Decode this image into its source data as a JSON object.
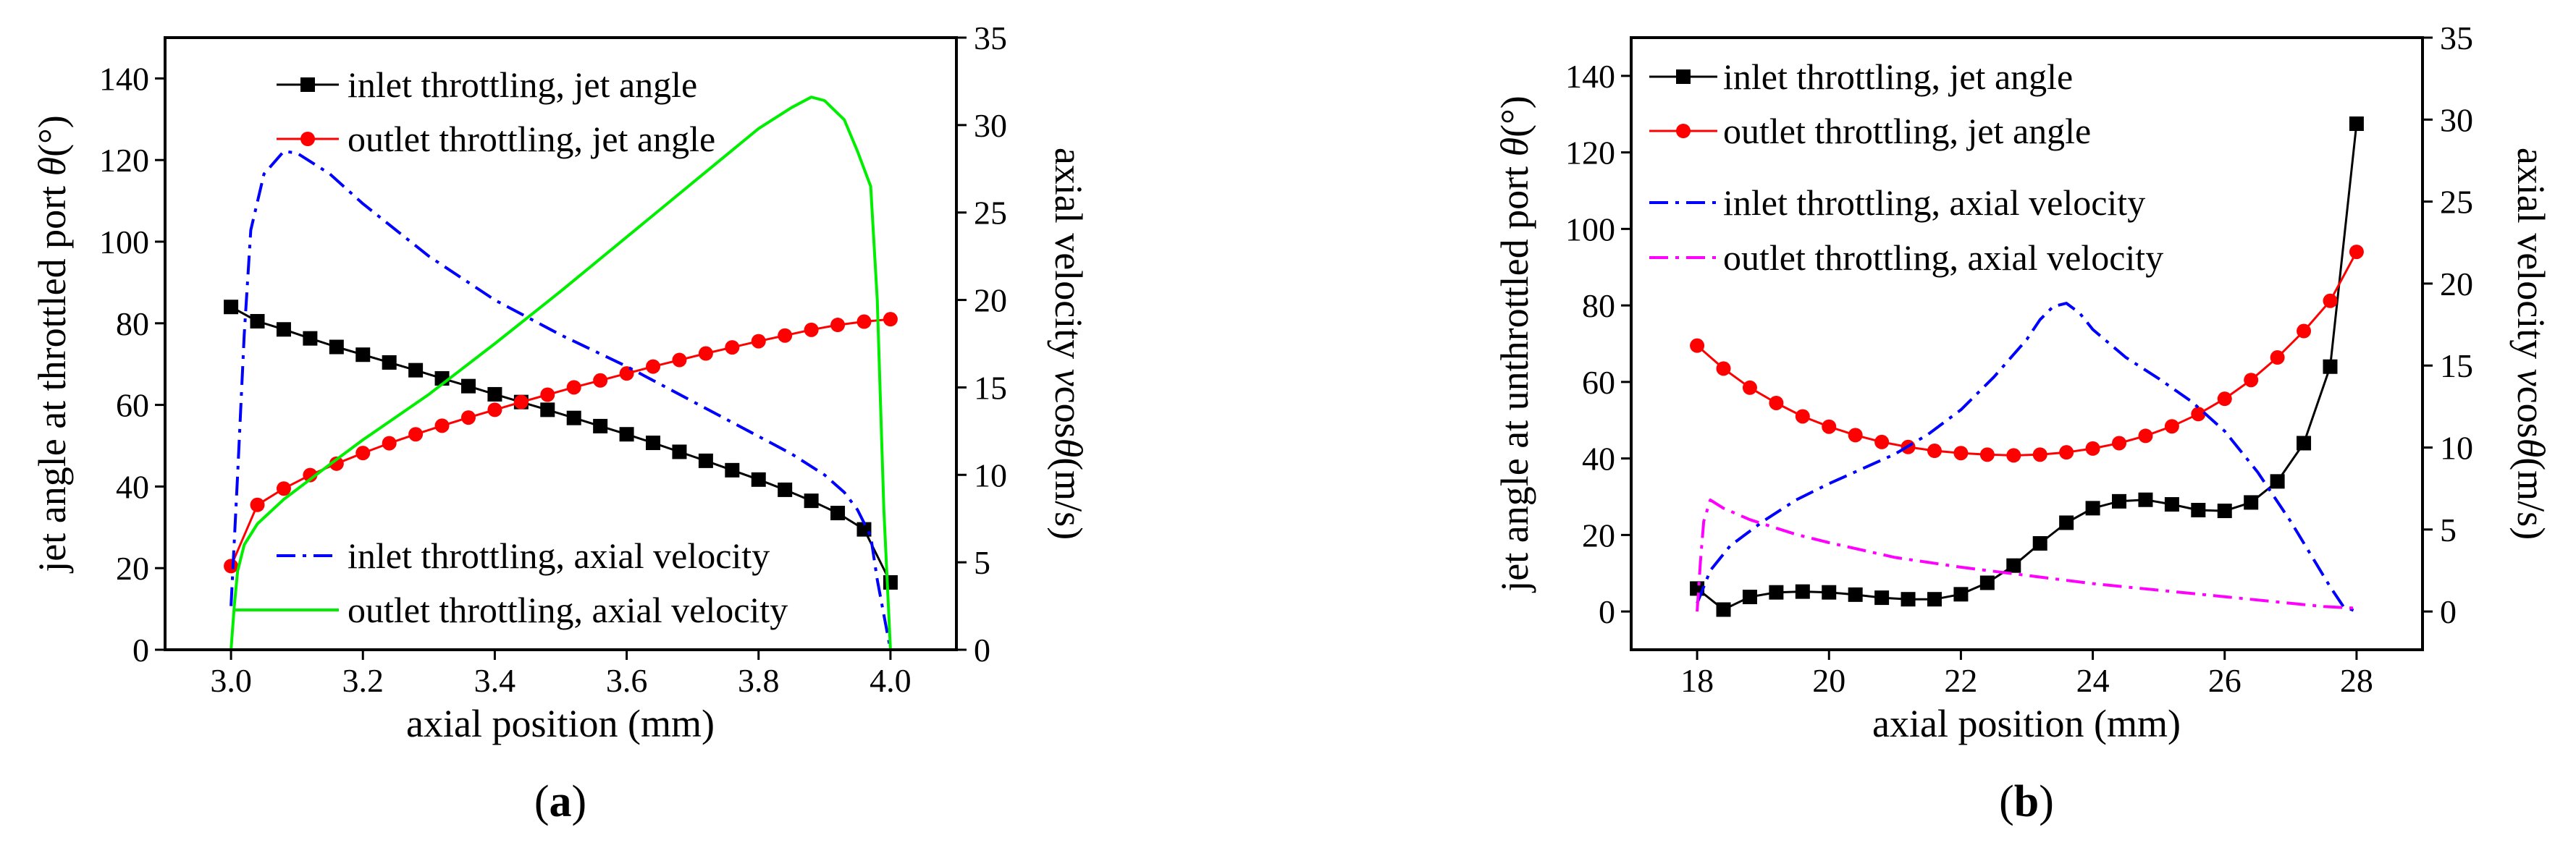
{
  "chart_data": [
    {
      "type": "line",
      "panel": "a",
      "caption_open": "(",
      "caption_letter": "a",
      "caption_close": ")",
      "xlabel": "axial position (mm)",
      "ylabel_left_prefix": "jet angle at throttled port ",
      "ylabel_left_sym": "θ",
      "ylabel_left_unit": "(°)",
      "ylabel_right_prefix": "axial velocity ",
      "ylabel_right_sym": "v",
      "ylabel_right_mid": "cos",
      "ylabel_right_sym2": "θ",
      "ylabel_right_unit": "(m/s)",
      "xlim": [
        2.9,
        4.1
      ],
      "ylim_left": [
        0,
        150
      ],
      "ylim_right": [
        0,
        35
      ],
      "xticks": [
        "3.0",
        "3.2",
        "3.4",
        "3.6",
        "3.8",
        "4.0"
      ],
      "yticks_left": [
        "0",
        "20",
        "40",
        "60",
        "80",
        "100",
        "120",
        "140"
      ],
      "yticks_right": [
        "0",
        "5",
        "10",
        "15",
        "20",
        "25",
        "30",
        "35"
      ],
      "legend": [
        "inlet throttling, jet angle",
        "outlet throttling, jet angle",
        "inlet throttling, axial velocity",
        "outlet throttling, axial velocity"
      ],
      "series": [
        {
          "name": "inlet throttling, jet angle",
          "axis": "left",
          "color": "#000000",
          "marker": "square",
          "dash": "solid",
          "x": [
            3.0,
            3.04,
            3.08,
            3.12,
            3.16,
            3.2,
            3.24,
            3.28,
            3.32,
            3.36,
            3.4,
            3.44,
            3.48,
            3.52,
            3.56,
            3.6,
            3.64,
            3.68,
            3.72,
            3.76,
            3.8,
            3.84,
            3.88,
            3.92,
            3.96,
            4.0
          ],
          "y": [
            84,
            80.5,
            78.5,
            76.3,
            74.2,
            72.3,
            70.4,
            68.5,
            66.5,
            64.6,
            62.6,
            60.7,
            58.8,
            56.8,
            54.8,
            52.8,
            50.7,
            48.5,
            46.3,
            44.0,
            41.7,
            39.2,
            36.5,
            33.5,
            29.5,
            16.5
          ]
        },
        {
          "name": "outlet throttling, jet angle",
          "axis": "left",
          "color": "#ff0000",
          "marker": "circle",
          "dash": "solid",
          "x": [
            3.0,
            3.04,
            3.08,
            3.12,
            3.16,
            3.2,
            3.24,
            3.28,
            3.32,
            3.36,
            3.4,
            3.44,
            3.48,
            3.52,
            3.56,
            3.6,
            3.64,
            3.68,
            3.72,
            3.76,
            3.8,
            3.84,
            3.88,
            3.92,
            3.96,
            4.0
          ],
          "y": [
            20.5,
            35.5,
            39.5,
            42.8,
            45.6,
            48.2,
            50.6,
            52.8,
            54.9,
            56.9,
            58.8,
            60.7,
            62.5,
            64.3,
            66.0,
            67.7,
            69.4,
            71.0,
            72.6,
            74.1,
            75.6,
            77.0,
            78.4,
            79.6,
            80.4,
            81.0
          ]
        },
        {
          "name": "inlet throttling, axial velocity",
          "axis": "right",
          "color": "#0000ff",
          "marker": "none",
          "dash": "dashdot",
          "x": [
            3.0,
            3.01,
            3.02,
            3.03,
            3.05,
            3.08,
            3.1,
            3.15,
            3.2,
            3.3,
            3.4,
            3.5,
            3.6,
            3.7,
            3.8,
            3.85,
            3.9,
            3.93,
            3.95,
            3.97,
            3.98,
            3.99,
            4.0
          ],
          "y": [
            2.5,
            10,
            18,
            24,
            27.2,
            28.5,
            28.4,
            27.2,
            25.5,
            22.5,
            20.0,
            18.0,
            16.2,
            14.2,
            12.2,
            11.2,
            10.0,
            9.0,
            8.0,
            6.5,
            4.0,
            2.0,
            0
          ]
        },
        {
          "name": "outlet throttling, axial velocity",
          "axis": "right",
          "color": "#00ee00",
          "marker": "none",
          "dash": "solid",
          "x": [
            3.0,
            3.005,
            3.01,
            3.02,
            3.04,
            3.08,
            3.15,
            3.2,
            3.3,
            3.4,
            3.5,
            3.6,
            3.7,
            3.8,
            3.85,
            3.88,
            3.9,
            3.93,
            3.95,
            3.96,
            3.97,
            3.98,
            3.99,
            4.0
          ],
          "y": [
            0,
            2.5,
            4.5,
            6.0,
            7.2,
            8.6,
            10.6,
            12.0,
            14.6,
            17.5,
            20.5,
            23.6,
            26.7,
            29.8,
            31.0,
            31.6,
            31.4,
            30.3,
            28.5,
            27.5,
            26.5,
            20.0,
            8.0,
            0
          ]
        }
      ]
    },
    {
      "type": "line",
      "panel": "b",
      "caption_open": "(",
      "caption_letter": "b",
      "caption_close": ")",
      "xlabel": "axial position (mm)",
      "ylabel_left_prefix": "jet angle at unthrottled port ",
      "ylabel_left_sym": "θ",
      "ylabel_left_unit": "(°)",
      "ylabel_right_prefix": "axial velocity  ",
      "ylabel_right_sym": "v",
      "ylabel_right_mid": "cos",
      "ylabel_right_sym2": "θ",
      "ylabel_right_unit": "(m/s)",
      "xlim": [
        17,
        29
      ],
      "ylim_left": [
        -10,
        150
      ],
      "ylim_right": [
        -2.333,
        35
      ],
      "xticks": [
        "18",
        "20",
        "22",
        "24",
        "26",
        "28"
      ],
      "yticks_left": [
        "0",
        "20",
        "40",
        "60",
        "80",
        "100",
        "120",
        "140"
      ],
      "yticks_right": [
        "0",
        "5",
        "10",
        "15",
        "20",
        "25",
        "30",
        "35"
      ],
      "legend": [
        "inlet throttling, jet angle",
        "outlet throttling, jet angle",
        "inlet throttling, axial velocity",
        "outlet throttling, axial velocity"
      ],
      "series": [
        {
          "name": "inlet throttling, jet angle",
          "axis": "left",
          "color": "#000000",
          "marker": "square",
          "dash": "solid",
          "x": [
            18.0,
            18.4,
            18.8,
            19.2,
            19.6,
            20.0,
            20.4,
            20.8,
            21.2,
            21.6,
            22.0,
            22.4,
            22.8,
            23.2,
            23.6,
            24.0,
            24.4,
            24.8,
            25.2,
            25.6,
            26.0,
            26.4,
            26.8,
            27.2,
            27.6,
            28.0
          ],
          "y": [
            6.0,
            0.5,
            3.8,
            5.0,
            5.2,
            5.0,
            4.4,
            3.6,
            3.2,
            3.2,
            4.5,
            7.5,
            12.0,
            17.8,
            23.2,
            27.0,
            28.8,
            29.2,
            28.0,
            26.5,
            26.3,
            28.5,
            34.0,
            44.0,
            64.0,
            127.5
          ]
        },
        {
          "name": "outlet throttling, jet angle",
          "axis": "left",
          "color": "#ff0000",
          "marker": "circle",
          "dash": "solid",
          "x": [
            18.0,
            18.4,
            18.8,
            19.2,
            19.6,
            20.0,
            20.4,
            20.8,
            21.2,
            21.6,
            22.0,
            22.4,
            22.8,
            23.2,
            23.6,
            24.0,
            24.4,
            24.8,
            25.2,
            25.6,
            26.0,
            26.4,
            26.8,
            27.2,
            27.6,
            28.0
          ],
          "y": [
            69.5,
            63.5,
            58.5,
            54.5,
            51.0,
            48.3,
            46.1,
            44.3,
            43.0,
            42.0,
            41.4,
            41.0,
            40.8,
            41.0,
            41.6,
            42.6,
            44.0,
            45.9,
            48.4,
            51.6,
            55.6,
            60.5,
            66.4,
            73.3,
            81.2,
            94.0
          ]
        },
        {
          "name": "inlet throttling, axial velocity",
          "axis": "right",
          "color": "#0000ff",
          "marker": "none",
          "dash": "dashdot",
          "x": [
            18.0,
            18.2,
            18.5,
            19.0,
            19.5,
            20.0,
            20.5,
            21.0,
            21.5,
            22.0,
            22.5,
            23.0,
            23.2,
            23.4,
            23.6,
            23.8,
            24.0,
            24.5,
            25.0,
            25.5,
            26.0,
            26.5,
            27.0,
            27.3,
            27.6,
            27.8,
            28.0
          ],
          "y": [
            0.5,
            2.5,
            4.0,
            5.5,
            6.8,
            7.8,
            8.7,
            9.6,
            10.8,
            12.3,
            14.3,
            16.6,
            17.8,
            18.6,
            18.8,
            18.2,
            17.2,
            15.5,
            14.2,
            12.8,
            11.0,
            8.5,
            5.5,
            3.5,
            1.5,
            0.3,
            0
          ]
        },
        {
          "name": "outlet throttling, axial velocity",
          "axis": "right",
          "color": "#ff00ff",
          "marker": "none",
          "dash": "dashdot",
          "x": [
            18.0,
            18.05,
            18.1,
            18.2,
            18.4,
            18.8,
            19.5,
            20.0,
            21.0,
            22.0,
            23.0,
            24.0,
            25.0,
            26.0,
            27.0,
            27.5,
            28.0
          ],
          "y": [
            0,
            3.0,
            5.5,
            6.8,
            6.3,
            5.6,
            4.7,
            4.2,
            3.3,
            2.7,
            2.2,
            1.7,
            1.3,
            0.9,
            0.5,
            0.3,
            0.2
          ]
        }
      ]
    }
  ]
}
